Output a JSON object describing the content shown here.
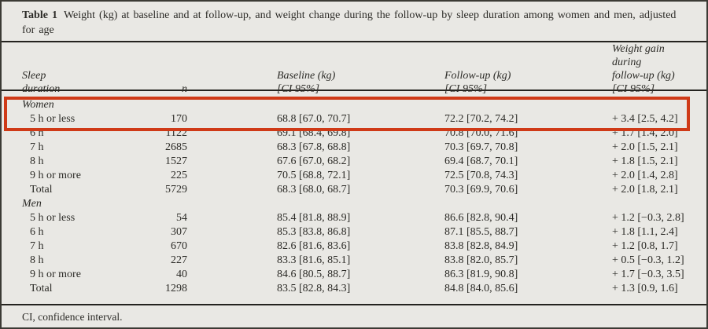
{
  "title": {
    "label": "Table 1",
    "line1": "Weight (kg) at baseline and at follow-up, and weight change during the follow-up by sleep duration among women and men, adjusted",
    "line2": "for age"
  },
  "header": {
    "sleep_line1": "Sleep",
    "sleep_line2": "duration",
    "n": "n",
    "baseline_line1": "Baseline (kg)",
    "baseline_line2": "[CI 95%]",
    "followup_line1": "Follow-up (kg)",
    "followup_line2": "[CI 95%]",
    "gain_line1": "Weight gain during",
    "gain_line2": "follow-up (kg)",
    "gain_line3": "[CI 95%]"
  },
  "sections": [
    {
      "name": "Women",
      "rows": [
        {
          "sleep": "5 h or less",
          "n": "170",
          "baseline": "68.8 [67.0, 70.7]",
          "followup": "72.2 [70.2, 74.2]",
          "gain": "+ 3.4 [2.5, 4.2]"
        },
        {
          "sleep": "6 h",
          "n": "1122",
          "baseline": "69.1 [68.4, 69.8]",
          "followup": "70.8 [70.0, 71.6]",
          "gain": "+ 1.7 [1.4, 2.0]"
        },
        {
          "sleep": "7 h",
          "n": "2685",
          "baseline": "68.3 [67.8, 68.8]",
          "followup": "70.3 [69.7, 70.8]",
          "gain": "+ 2.0 [1.5, 2.1]"
        },
        {
          "sleep": "8 h",
          "n": "1527",
          "baseline": "67.6 [67.0, 68.2]",
          "followup": "69.4 [68.7, 70.1]",
          "gain": "+ 1.8 [1.5, 2.1]"
        },
        {
          "sleep": "9 h or more",
          "n": "225",
          "baseline": "70.5 [68.8, 72.1]",
          "followup": "72.5 [70.8, 74.3]",
          "gain": "+ 2.0 [1.4, 2.8]"
        },
        {
          "sleep": "Total",
          "n": "5729",
          "baseline": "68.3 [68.0, 68.7]",
          "followup": "70.3 [69.9, 70.6]",
          "gain": "+ 2.0 [1.8, 2.1]"
        }
      ]
    },
    {
      "name": "Men",
      "rows": [
        {
          "sleep": "5 h or less",
          "n": "54",
          "baseline": "85.4 [81.8, 88.9]",
          "followup": "86.6 [82.8, 90.4]",
          "gain": "+ 1.2 [−0.3, 2.8]"
        },
        {
          "sleep": "6 h",
          "n": "307",
          "baseline": "85.3 [83.8, 86.8]",
          "followup": "87.1 [85.5, 88.7]",
          "gain": "+ 1.8 [1.1, 2.4]"
        },
        {
          "sleep": "7 h",
          "n": "670",
          "baseline": "82.6 [81.6, 83.6]",
          "followup": "83.8 [82.8, 84.9]",
          "gain": "+ 1.2 [0.8, 1.7]"
        },
        {
          "sleep": "8 h",
          "n": "227",
          "baseline": "83.3 [81.6, 85.1]",
          "followup": "83.8 [82.0, 85.7]",
          "gain": "+ 0.5 [−0.3, 1.2]"
        },
        {
          "sleep": "9 h or more",
          "n": "40",
          "baseline": "84.6 [80.5, 88.7]",
          "followup": "86.3 [81.9, 90.8]",
          "gain": "+ 1.7 [−0.3, 3.5]"
        },
        {
          "sleep": "Total",
          "n": "1298",
          "baseline": "83.5 [82.8, 84.3]",
          "followup": "84.8 [84.0, 85.6]",
          "gain": "+ 1.3 [0.9, 1.6]"
        }
      ]
    }
  ],
  "footnote": "CI, confidence interval.",
  "annotation": {
    "type": "highlight-rectangle",
    "color": "#cf3a17",
    "covers": "Women section label and 5 h or less row"
  }
}
